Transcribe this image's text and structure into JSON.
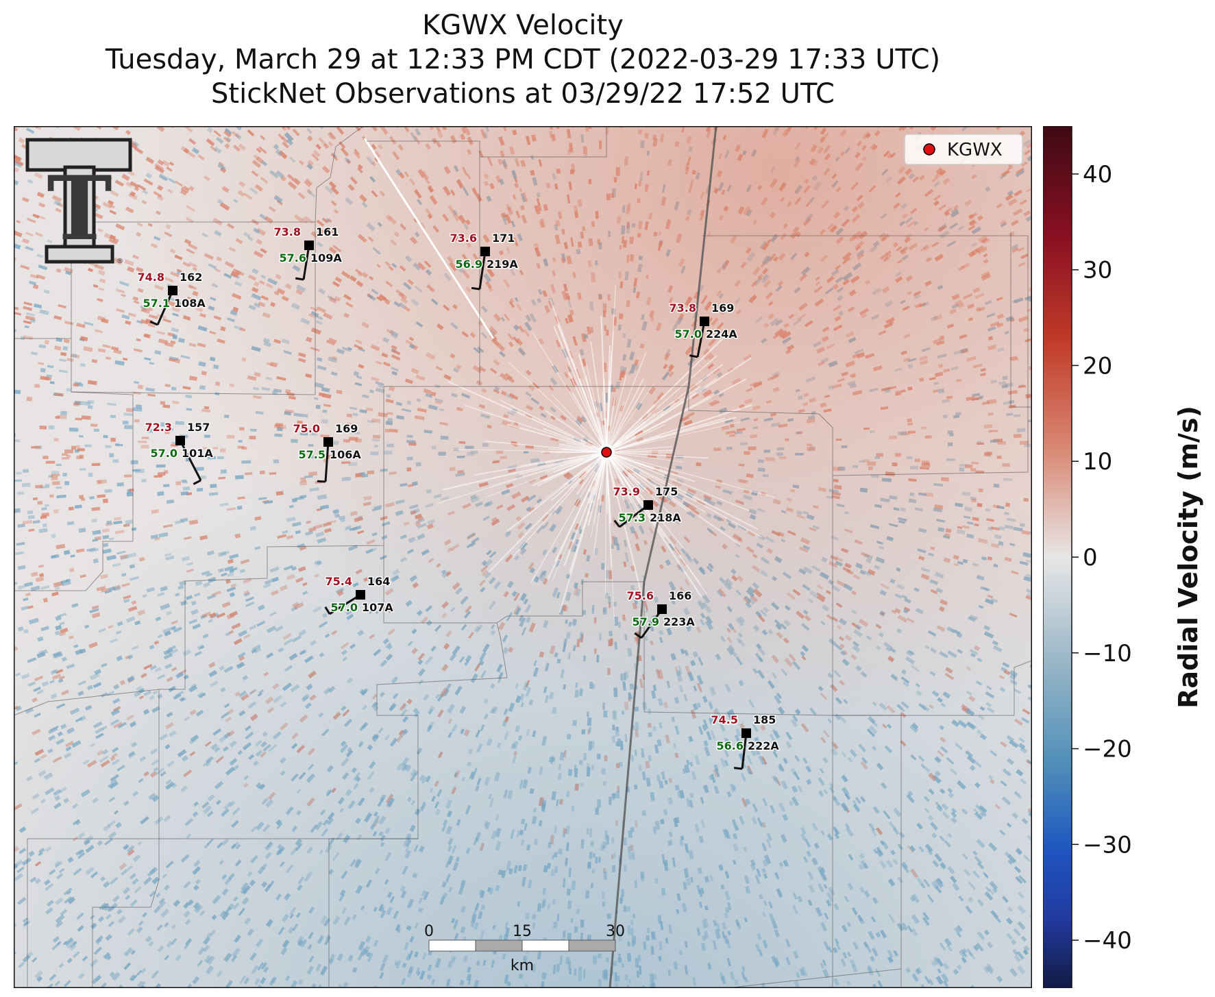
{
  "title": {
    "line1": "KGWX Velocity",
    "line2": "Tuesday, March 29 at 12:33 PM CDT (2022-03-29 17:33 UTC)",
    "line3": "StickNet Observations at 03/29/22 17:52 UTC"
  },
  "legend": {
    "label": "KGWX"
  },
  "radar": {
    "name": "KGWX"
  },
  "colorbar": {
    "label": "Radial Velocity (m/s)",
    "min": -45,
    "max": 45,
    "ticks": [
      "40",
      "30",
      "20",
      "10",
      "0",
      "−10",
      "−20",
      "−30",
      "−40"
    ]
  },
  "scalebar": {
    "labels": [
      "0",
      "15",
      "30"
    ],
    "unit": "km"
  },
  "logo": {
    "text": "T",
    "mark": "®"
  },
  "stations": [
    {
      "id": "161",
      "probe": "109A",
      "temp": "73.8",
      "dew": "57.6"
    },
    {
      "id": "171",
      "probe": "219A",
      "temp": "73.6",
      "dew": "56.9"
    },
    {
      "id": "162",
      "probe": "108A",
      "temp": "74.8",
      "dew": "57.1"
    },
    {
      "id": "169",
      "probe": "224A",
      "temp": "73.8",
      "dew": "57.0"
    },
    {
      "id": "157",
      "probe": "101A",
      "temp": "72.3",
      "dew": "57.0"
    },
    {
      "id": "169",
      "probe": "106A",
      "temp": "75.0",
      "dew": "57.5"
    },
    {
      "id": "175",
      "probe": "218A",
      "temp": "73.9",
      "dew": "57.3"
    },
    {
      "id": "164",
      "probe": "107A",
      "temp": "75.4",
      "dew": "57.0"
    },
    {
      "id": "166",
      "probe": "223A",
      "temp": "75.6",
      "dew": "57.9"
    },
    {
      "id": "185",
      "probe": "222A",
      "temp": "74.5",
      "dew": "56.6"
    }
  ],
  "colors": {
    "velocity_pos": "#d9826a",
    "velocity_neg": "#7aa8c4",
    "temp_text": "#a01020",
    "dew_text": "#0a6a10",
    "radar_marker": "#e01010"
  }
}
